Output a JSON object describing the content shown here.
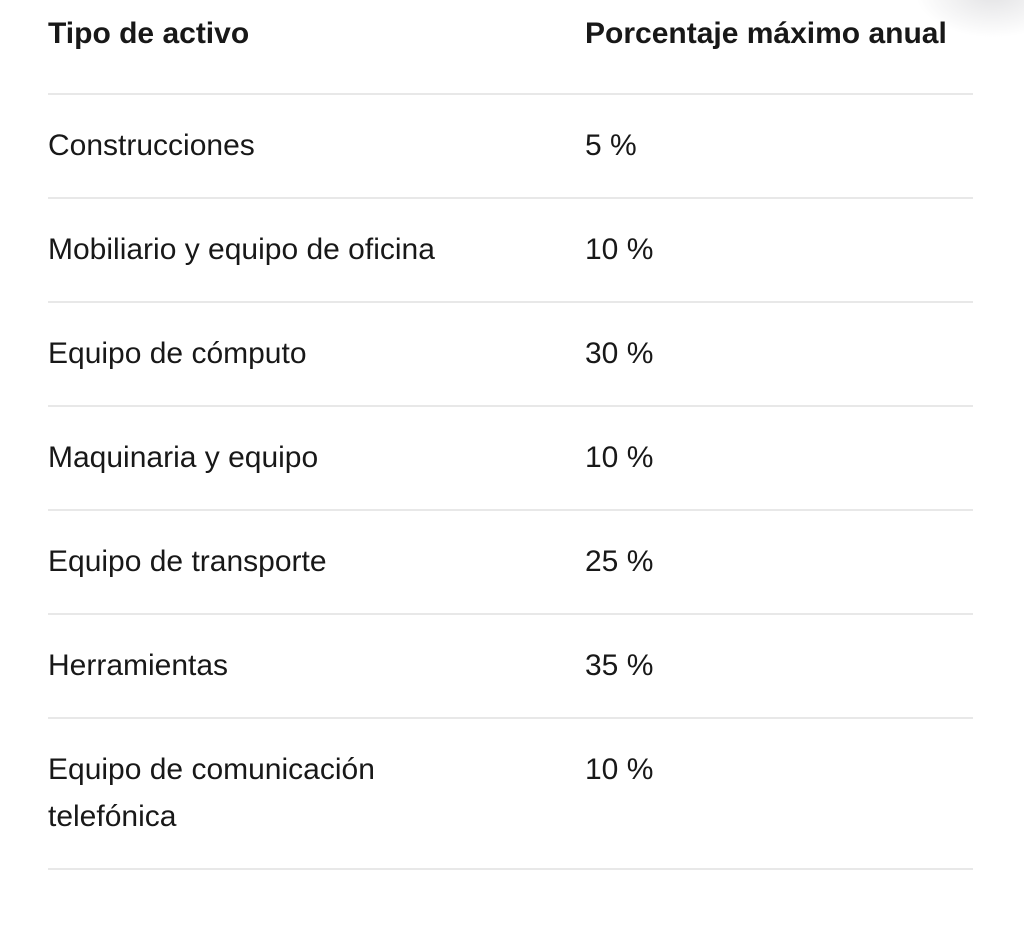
{
  "table": {
    "header": {
      "col1": "Tipo de activo",
      "col2": "Porcentaje máximo anual"
    },
    "rows": [
      {
        "tipo": "Construcciones",
        "porcentaje": "5 %"
      },
      {
        "tipo": "Mobiliario y equipo de oficina",
        "porcentaje": "10 %"
      },
      {
        "tipo": "Equipo de cómputo",
        "porcentaje": "30 %"
      },
      {
        "tipo": "Maquinaria y equipo",
        "porcentaje": "10 %"
      },
      {
        "tipo": "Equipo de transporte",
        "porcentaje": "25 %"
      },
      {
        "tipo": "Herramientas",
        "porcentaje": "35 %"
      },
      {
        "tipo": "Equipo de comunicación telefónica",
        "porcentaje": "10 %"
      }
    ],
    "colors": {
      "text": "#181818",
      "separator": "#e8e8e8",
      "background": "#ffffff"
    }
  }
}
